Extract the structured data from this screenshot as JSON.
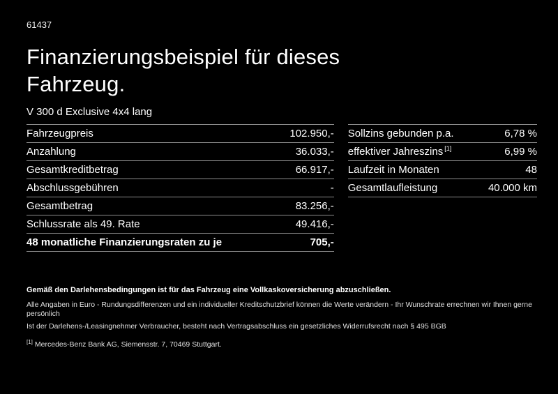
{
  "page": {
    "id": "61437",
    "title_lines": [
      "Finanzierungsbeispiel für dieses",
      "Fahrzeug."
    ],
    "subtitle": "V 300 d Exclusive 4x4 lang"
  },
  "finance_table": {
    "rows": [
      {
        "label": "Fahrzeugpreis",
        "value": "102.950,-"
      },
      {
        "label": "Anzahlung",
        "value": "36.033,-"
      },
      {
        "label": "Gesamtkreditbetrag",
        "value": "66.917,-"
      },
      {
        "label": "Abschlussgebühren",
        "value": "-"
      },
      {
        "label": "Gesamtbetrag",
        "value": "83.256,-"
      },
      {
        "label": "Schlussrate als 49. Rate",
        "value": "49.416,-"
      },
      {
        "label": "48 monatliche Finanzierungsraten zu je",
        "value": "705,-"
      }
    ]
  },
  "conditions_table": {
    "rows": [
      {
        "label": "Sollzins gebunden p.a.",
        "sup": "",
        "value": "6,78 %"
      },
      {
        "label": "effektiver Jahreszins",
        "sup": "[1]",
        "value": "6,99 %"
      },
      {
        "label": "Laufzeit in Monaten",
        "sup": "",
        "value": "48"
      },
      {
        "label": "Gesamtlaufleistung",
        "sup": "",
        "value": "40.000 km"
      }
    ]
  },
  "footer": {
    "bold_line": "Gemäß den Darlehensbedingungen ist für das Fahrzeug eine Vollkaskoversicherung abzuschließen.",
    "note1": "Alle Angaben in Euro - Rundungsdifferenzen und ein individueller Kreditschutzbrief können die Werte verändern - Ihr Wunschrate errechnen wir Ihnen gerne persönlich",
    "note2": "Ist der Darlehens-/Leasingnehmer Verbraucher, besteht nach Vertragsabschluss ein gesetzliches Widerrufsrecht nach § 495 BGB",
    "footnote_marker": "[1]",
    "footnote_text": "Mercedes-Benz Bank AG, Siemensstr. 7, 70469 Stuttgart."
  },
  "colors": {
    "background": "#000000",
    "text": "#ffffff",
    "divider": "#8f8f8f"
  }
}
